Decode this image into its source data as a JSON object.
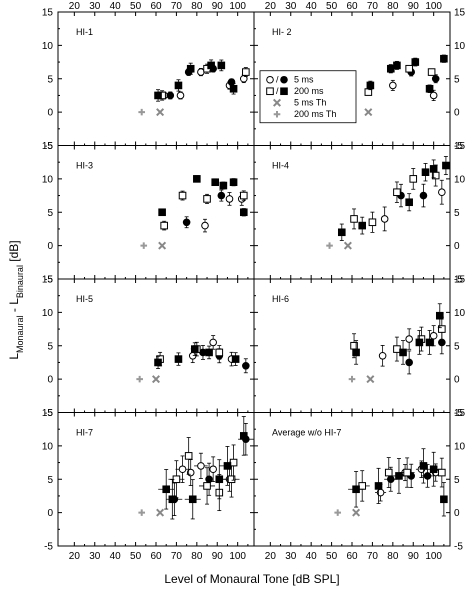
{
  "figure": {
    "xlabel": "Level of Monaural Tone [dB SPL]",
    "ylabel": {
      "main": "L",
      "sub1": "Monaural",
      "mid": " - L",
      "sub2": "Binaural",
      "tail": " [dB]"
    },
    "legend": {
      "panel": 1,
      "entries": [
        {
          "name": "5 ms",
          "markers": [
            "open-circle",
            "filled-circle"
          ]
        },
        {
          "name": "200 ms",
          "markers": [
            "open-square",
            "filled-square"
          ]
        },
        {
          "name": "5 ms Th",
          "markers": [
            "gray-x"
          ]
        },
        {
          "name": "200 ms Th",
          "markers": [
            "gray-plus"
          ]
        }
      ]
    }
  },
  "chart_data": {
    "type": "scatter",
    "layout": "4 rows x 2 columns of panels with shared axes",
    "xlim": [
      12,
      108
    ],
    "ylim": [
      -5,
      15
    ],
    "x_ticks": [
      20,
      30,
      40,
      50,
      60,
      70,
      80,
      90,
      100
    ],
    "y_ticks": [
      -5,
      0,
      5,
      10,
      15
    ],
    "y_tick_labels": [
      "-5",
      "0",
      "5",
      "10",
      "15"
    ],
    "x_tick_labels": [
      "20",
      "30",
      "40",
      "50",
      "60",
      "70",
      "80",
      "90",
      "100"
    ],
    "panels": [
      {
        "title": "HI-1",
        "thresholds": [
          {
            "x": 53,
            "y": 0,
            "marker": "gray-plus"
          },
          {
            "x": 62,
            "y": 0,
            "marker": "gray-x"
          }
        ],
        "series": [
          {
            "marker": "open-circle",
            "points": [
              {
                "x": 64,
                "y": 2.5
              },
              {
                "x": 72,
                "y": 2.5
              },
              {
                "x": 82,
                "y": 6
              },
              {
                "x": 96,
                "y": 4
              },
              {
                "x": 103,
                "y": 5
              }
            ]
          },
          {
            "marker": "filled-circle",
            "points": [
              {
                "x": 67,
                "y": 2.5
              },
              {
                "x": 76,
                "y": 6
              },
              {
                "x": 88,
                "y": 6.5
              },
              {
                "x": 97,
                "y": 4.5
              }
            ]
          },
          {
            "marker": "open-square",
            "points": [
              {
                "x": 63,
                "y": 2.5
              },
              {
                "x": 85,
                "y": 6.5
              },
              {
                "x": 104,
                "y": 6
              }
            ]
          },
          {
            "marker": "filled-square",
            "points": [
              {
                "x": 61,
                "y": 2.5
              },
              {
                "x": 71,
                "y": 4
              },
              {
                "x": 77,
                "y": 6.5
              },
              {
                "x": 87,
                "y": 7
              },
              {
                "x": 92,
                "y": 7
              },
              {
                "x": 98,
                "y": 3.5
              }
            ]
          }
        ]
      },
      {
        "title": "HI- 2",
        "thresholds": [
          {
            "x": 58,
            "y": 0,
            "marker": "gray-plus"
          },
          {
            "x": 68,
            "y": 0,
            "marker": "gray-x"
          }
        ],
        "series": [
          {
            "marker": "open-circle",
            "points": [
              {
                "x": 80,
                "y": 4
              },
              {
                "x": 100,
                "y": 2.5
              }
            ]
          },
          {
            "marker": "filled-circle",
            "points": [
              {
                "x": 89,
                "y": 6
              },
              {
                "x": 101,
                "y": 5
              }
            ]
          },
          {
            "marker": "open-square",
            "points": [
              {
                "x": 68,
                "y": 3
              },
              {
                "x": 88,
                "y": 6.5
              },
              {
                "x": 99,
                "y": 6
              }
            ]
          },
          {
            "marker": "filled-square",
            "points": [
              {
                "x": 69,
                "y": 4
              },
              {
                "x": 79,
                "y": 6.5
              },
              {
                "x": 82,
                "y": 7
              },
              {
                "x": 91,
                "y": 7.5
              },
              {
                "x": 98,
                "y": 3.5
              },
              {
                "x": 105,
                "y": 8
              }
            ]
          }
        ]
      },
      {
        "title": "HI-3",
        "thresholds": [
          {
            "x": 54,
            "y": 0,
            "marker": "gray-plus"
          },
          {
            "x": 63,
            "y": 0,
            "marker": "gray-x"
          }
        ],
        "series": [
          {
            "marker": "open-circle",
            "points": [
              {
                "x": 84,
                "y": 3
              },
              {
                "x": 96,
                "y": 7
              },
              {
                "x": 102,
                "y": 7
              }
            ]
          },
          {
            "marker": "filled-circle",
            "points": [
              {
                "x": 75,
                "y": 3.5
              },
              {
                "x": 92,
                "y": 7.5
              }
            ]
          },
          {
            "marker": "open-square",
            "points": [
              {
                "x": 64,
                "y": 3
              },
              {
                "x": 73,
                "y": 7.5
              },
              {
                "x": 85,
                "y": 7
              },
              {
                "x": 103,
                "y": 7.5
              }
            ]
          },
          {
            "marker": "filled-square",
            "points": [
              {
                "x": 63,
                "y": 5
              },
              {
                "x": 80,
                "y": 10
              },
              {
                "x": 89,
                "y": 9.5
              },
              {
                "x": 93,
                "y": 9
              },
              {
                "x": 98,
                "y": 9.5
              },
              {
                "x": 103,
                "y": 5
              }
            ]
          }
        ]
      },
      {
        "title": "HI-4",
        "thresholds": [
          {
            "x": 49,
            "y": 0,
            "marker": "gray-plus"
          },
          {
            "x": 58,
            "y": 0,
            "marker": "gray-x"
          }
        ],
        "series": [
          {
            "marker": "open-circle",
            "points": [
              {
                "x": 76,
                "y": 4
              },
              {
                "x": 104,
                "y": 8
              }
            ]
          },
          {
            "marker": "filled-circle",
            "points": [
              {
                "x": 84,
                "y": 7.5
              },
              {
                "x": 95,
                "y": 7.5
              }
            ]
          },
          {
            "marker": "open-square",
            "points": [
              {
                "x": 61,
                "y": 4
              },
              {
                "x": 70,
                "y": 3.5
              },
              {
                "x": 82,
                "y": 8
              },
              {
                "x": 90,
                "y": 10
              },
              {
                "x": 101,
                "y": 10.5
              }
            ]
          },
          {
            "marker": "filled-square",
            "points": [
              {
                "x": 55,
                "y": 2
              },
              {
                "x": 65,
                "y": 3
              },
              {
                "x": 88,
                "y": 6.5
              },
              {
                "x": 96,
                "y": 11
              },
              {
                "x": 100,
                "y": 11.5
              },
              {
                "x": 106,
                "y": 12
              }
            ]
          }
        ]
      },
      {
        "title": "HI-5",
        "thresholds": [
          {
            "x": 52,
            "y": 0,
            "marker": "gray-plus"
          },
          {
            "x": 60,
            "y": 0,
            "marker": "gray-x"
          }
        ],
        "series": [
          {
            "marker": "open-circle",
            "points": [
              {
                "x": 78,
                "y": 3.5
              },
              {
                "x": 88,
                "y": 5.5
              },
              {
                "x": 97,
                "y": 3
              }
            ]
          },
          {
            "marker": "filled-circle",
            "points": [
              {
                "x": 83,
                "y": 4
              },
              {
                "x": 91,
                "y": 3.5
              },
              {
                "x": 104,
                "y": 2
              }
            ]
          },
          {
            "marker": "open-square",
            "points": [
              {
                "x": 62,
                "y": 3
              },
              {
                "x": 80,
                "y": 4.5
              },
              {
                "x": 91,
                "y": 4
              }
            ]
          },
          {
            "marker": "filled-square",
            "points": [
              {
                "x": 61,
                "y": 2.5
              },
              {
                "x": 71,
                "y": 3
              },
              {
                "x": 79,
                "y": 4.5
              },
              {
                "x": 86,
                "y": 4
              },
              {
                "x": 99,
                "y": 3
              }
            ]
          }
        ]
      },
      {
        "title": "HI-6",
        "thresholds": [
          {
            "x": 60,
            "y": 0,
            "marker": "gray-plus"
          },
          {
            "x": 69,
            "y": 0,
            "marker": "gray-x"
          }
        ],
        "series": [
          {
            "marker": "open-circle",
            "points": [
              {
                "x": 75,
                "y": 3.5
              },
              {
                "x": 88,
                "y": 6
              },
              {
                "x": 100,
                "y": 6.5
              }
            ]
          },
          {
            "marker": "filled-circle",
            "points": [
              {
                "x": 88,
                "y": 2.5
              },
              {
                "x": 104,
                "y": 5.5
              }
            ]
          },
          {
            "marker": "open-square",
            "points": [
              {
                "x": 61,
                "y": 5
              },
              {
                "x": 82,
                "y": 4.5
              },
              {
                "x": 94,
                "y": 6
              },
              {
                "x": 104,
                "y": 7.5
              }
            ]
          },
          {
            "marker": "filled-square",
            "points": [
              {
                "x": 62,
                "y": 4
              },
              {
                "x": 85,
                "y": 4
              },
              {
                "x": 93,
                "y": 5.5
              },
              {
                "x": 98,
                "y": 5.5
              },
              {
                "x": 103,
                "y": 9.5
              }
            ]
          }
        ]
      },
      {
        "title": "HI-7",
        "thresholds": [
          {
            "x": 53,
            "y": 0,
            "marker": "gray-plus"
          },
          {
            "x": 62,
            "y": 0,
            "marker": "gray-x"
          }
        ],
        "series": [
          {
            "marker": "open-circle",
            "points": [
              {
                "x": 73,
                "y": 6.5
              },
              {
                "x": 77,
                "y": 6
              },
              {
                "x": 82,
                "y": 7
              },
              {
                "x": 88,
                "y": 6.5
              },
              {
                "x": 96,
                "y": 5
              }
            ]
          },
          {
            "marker": "filled-circle",
            "points": [
              {
                "x": 69,
                "y": 2
              },
              {
                "x": 86,
                "y": 5
              },
              {
                "x": 104,
                "y": 11
              }
            ]
          },
          {
            "marker": "open-square",
            "points": [
              {
                "x": 70,
                "y": 5
              },
              {
                "x": 76,
                "y": 8.5
              },
              {
                "x": 85,
                "y": 4
              },
              {
                "x": 91,
                "y": 3
              },
              {
                "x": 97,
                "y": 5
              },
              {
                "x": 98,
                "y": 7.5
              }
            ]
          },
          {
            "marker": "filled-square",
            "points": [
              {
                "x": 65,
                "y": 3.5
              },
              {
                "x": 68,
                "y": 2
              },
              {
                "x": 78,
                "y": 2
              },
              {
                "x": 91,
                "y": 5
              },
              {
                "x": 95,
                "y": 7
              },
              {
                "x": 103,
                "y": 11.5
              }
            ]
          }
        ]
      },
      {
        "title": "Average w/o HI-7",
        "thresholds": [
          {
            "x": 53,
            "y": 0,
            "marker": "gray-plus"
          },
          {
            "x": 62,
            "y": 0,
            "marker": "gray-x"
          }
        ],
        "series": [
          {
            "marker": "open-circle",
            "points": [
              {
                "x": 74,
                "y": 3
              },
              {
                "x": 86,
                "y": 6
              },
              {
                "x": 94,
                "y": 6.5
              },
              {
                "x": 101,
                "y": 6
              }
            ]
          },
          {
            "marker": "filled-circle",
            "points": [
              {
                "x": 79,
                "y": 5
              },
              {
                "x": 89,
                "y": 5.5
              },
              {
                "x": 97,
                "y": 5.5
              }
            ]
          },
          {
            "marker": "open-square",
            "points": [
              {
                "x": 65,
                "y": 4
              },
              {
                "x": 78,
                "y": 6
              },
              {
                "x": 87,
                "y": 6
              },
              {
                "x": 104,
                "y": 6
              }
            ]
          },
          {
            "marker": "filled-square",
            "points": [
              {
                "x": 62,
                "y": 3.5
              },
              {
                "x": 73,
                "y": 4
              },
              {
                "x": 83,
                "y": 5.5
              },
              {
                "x": 95,
                "y": 7
              },
              {
                "x": 100,
                "y": 6.5
              },
              {
                "x": 105,
                "y": 2
              }
            ]
          }
        ]
      }
    ]
  }
}
